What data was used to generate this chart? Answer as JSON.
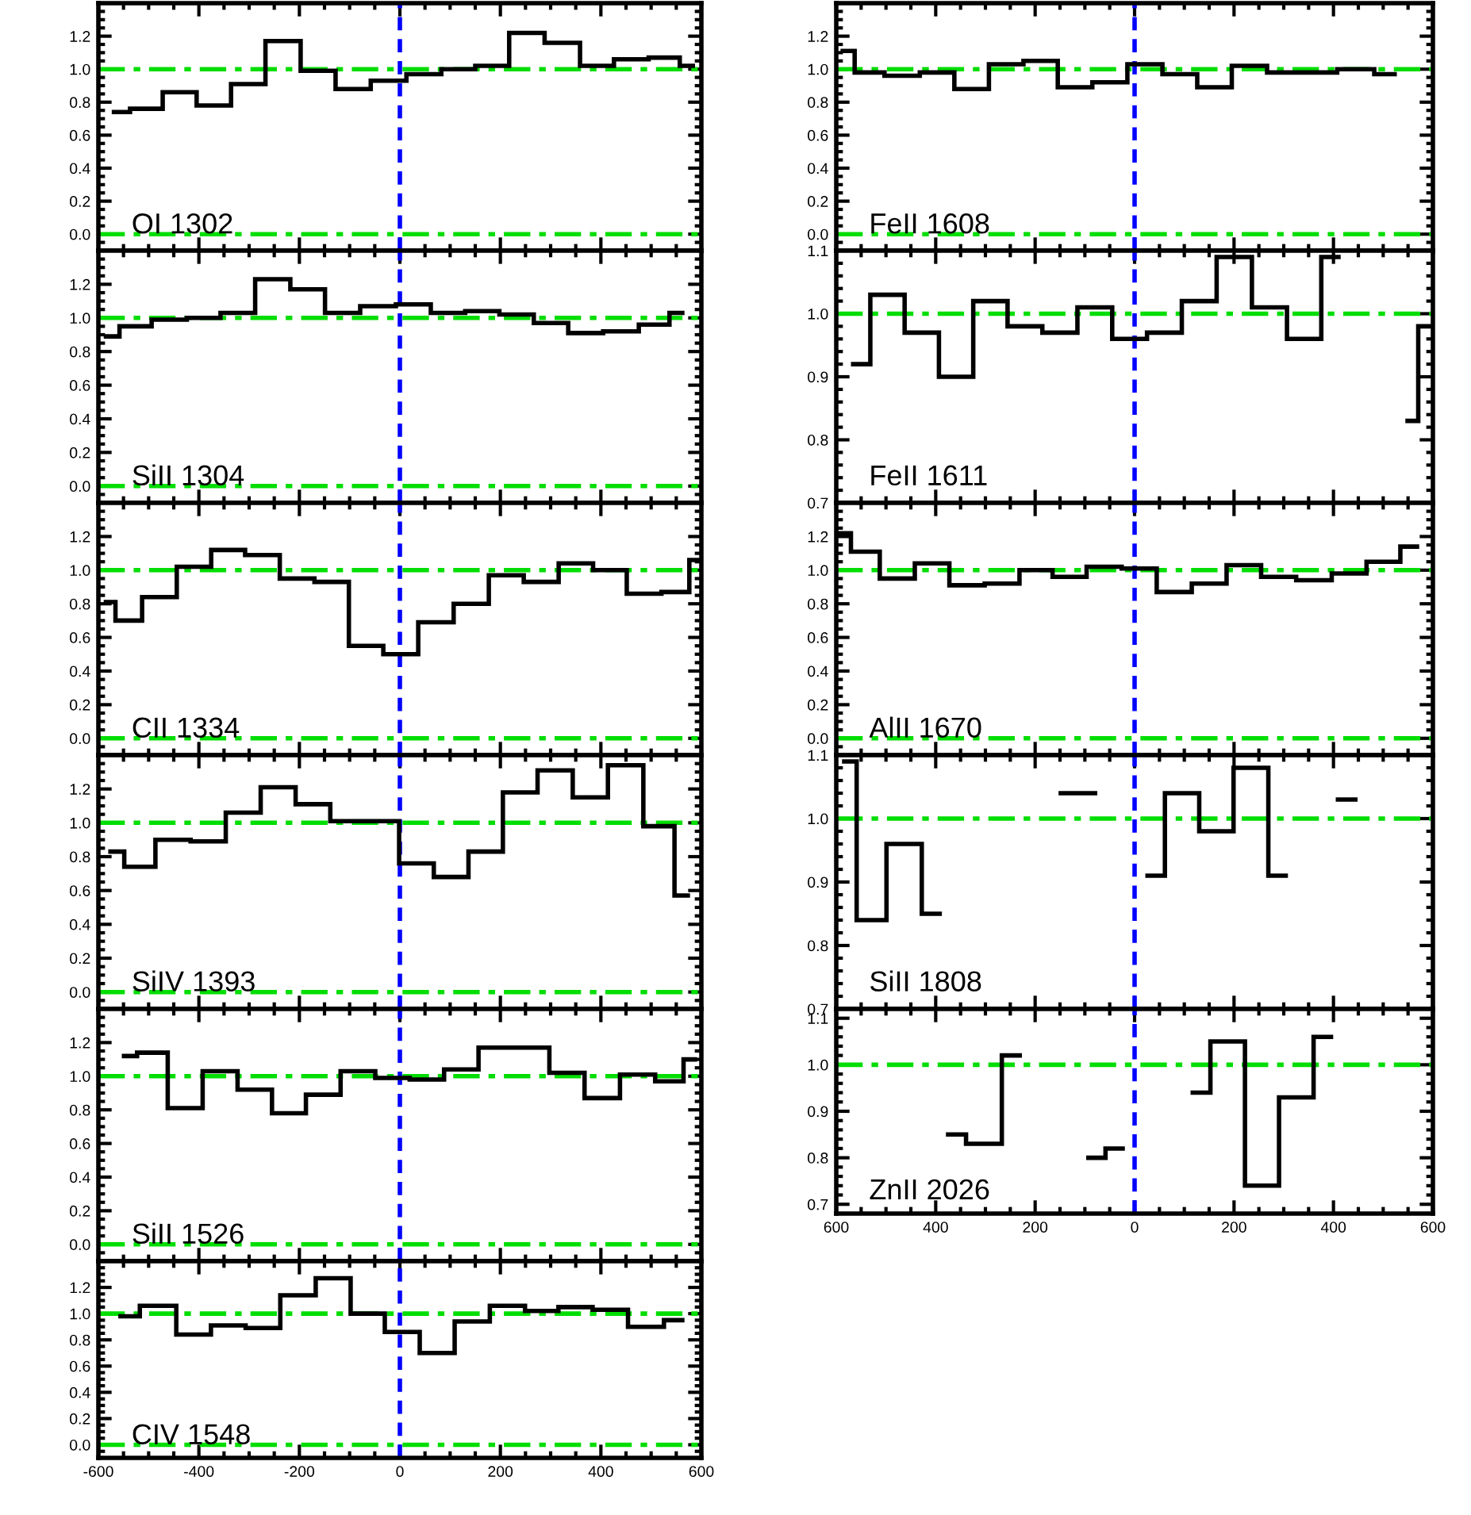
{
  "chart_data": [
    {
      "type": "step",
      "annotations": [
        "OI 1302"
      ],
      "series": [
        {
          "color": "#000000",
          "x": [
            -569,
            -505,
            -439,
            -370,
            -302,
            -233,
            -162,
            -94,
            -22,
            48,
            117,
            183,
            252,
            324,
            393,
            459,
            531,
            583
          ],
          "values": [
            0.74,
            0.76,
            0.86,
            0.78,
            0.91,
            1.17,
            0.99,
            0.88,
            0.93,
            0.97,
            1.0,
            1.02,
            1.22,
            1.16,
            1.02,
            1.06,
            1.07,
            1.02
          ]
        }
      ],
      "xlim": [
        -600,
        600
      ],
      "xticks": [
        {
          "value": -600,
          "label": null
        },
        {
          "value": -400,
          "label": null
        },
        {
          "value": -200,
          "label": null
        },
        {
          "value": 0,
          "label": null
        },
        {
          "value": 200,
          "label": null
        },
        {
          "value": 400,
          "label": null
        },
        {
          "value": 600,
          "label": null
        }
      ],
      "ylim": [
        -0.1,
        1.4
      ],
      "yticks": [
        {
          "value": 0,
          "label": "0.0"
        },
        {
          "value": 0.2,
          "label": "0.2"
        },
        {
          "value": 0.4,
          "label": "0.4"
        },
        {
          "value": 0.6,
          "label": "0.6"
        },
        {
          "value": 0.8,
          "label": "0.8"
        },
        {
          "value": 1,
          "label": "1.0"
        },
        {
          "value": 1.2,
          "label": "1.2"
        }
      ],
      "tick_labels": "y",
      "grid": false,
      "legend": false,
      "ref_lines": [
        {
          "axis": "y",
          "value": 0,
          "color": "#00dd00",
          "line_style": "dashdot"
        },
        {
          "axis": "y",
          "value": 1,
          "color": "#00dd00",
          "line_style": "dashdot"
        },
        {
          "axis": "x",
          "value": 0,
          "color": "#0000ff",
          "line_style": "dashed"
        }
      ]
    },
    {
      "type": "step",
      "annotations": [
        "SiII 1304"
      ],
      "series": [
        {
          "color": "#000000",
          "x": [
            -585,
            -531,
            -457,
            -391,
            -323,
            -253,
            -183,
            -115,
            -43,
            27,
            96,
            164,
            232,
            301,
            369,
            440,
            511,
            562
          ],
          "values": [
            0.89,
            0.95,
            0.99,
            1.0,
            1.03,
            1.23,
            1.17,
            1.03,
            1.07,
            1.08,
            1.03,
            1.04,
            1.02,
            0.97,
            0.91,
            0.92,
            0.96,
            1.03
          ]
        }
      ],
      "xlim": [
        -600,
        600
      ],
      "xticks": [
        {
          "value": -600,
          "label": null
        },
        {
          "value": -400,
          "label": null
        },
        {
          "value": -200,
          "label": null
        },
        {
          "value": 0,
          "label": null
        },
        {
          "value": 200,
          "label": null
        },
        {
          "value": 400,
          "label": null
        },
        {
          "value": 600,
          "label": null
        }
      ],
      "ylim": [
        -0.1,
        1.4
      ],
      "yticks": [
        {
          "value": 0,
          "label": "0.0"
        },
        {
          "value": 0.2,
          "label": "0.2"
        },
        {
          "value": 0.4,
          "label": "0.4"
        },
        {
          "value": 0.6,
          "label": "0.6"
        },
        {
          "value": 0.8,
          "label": "0.8"
        },
        {
          "value": 1,
          "label": "1.0"
        },
        {
          "value": 1.2,
          "label": "1.2"
        }
      ],
      "tick_labels": "y",
      "grid": false,
      "legend": false,
      "ref_lines": [
        {
          "axis": "y",
          "value": 0,
          "color": "#00dd00",
          "line_style": "dashdot"
        },
        {
          "axis": "y",
          "value": 1,
          "color": "#00dd00",
          "line_style": "dashdot"
        },
        {
          "axis": "x",
          "value": 0,
          "color": "#0000ff",
          "line_style": "dashed"
        }
      ]
    },
    {
      "type": "step",
      "annotations": [
        "CII 1334"
      ],
      "series": [
        {
          "color": "#000000",
          "x": [
            -585,
            -547,
            -479,
            -409,
            -342,
            -274,
            -204,
            -136,
            -67,
            1,
            72,
            142,
            212,
            281,
            351,
            418,
            485,
            556,
            596
          ],
          "values": [
            0.81,
            0.7,
            0.84,
            1.02,
            1.12,
            1.09,
            0.95,
            0.93,
            0.55,
            0.5,
            0.69,
            0.8,
            0.97,
            0.93,
            1.04,
            1.0,
            0.86,
            0.87,
            1.06
          ]
        }
      ],
      "xlim": [
        -600,
        600
      ],
      "xticks": [
        {
          "value": -600,
          "label": null
        },
        {
          "value": -400,
          "label": null
        },
        {
          "value": -200,
          "label": null
        },
        {
          "value": 0,
          "label": null
        },
        {
          "value": 200,
          "label": null
        },
        {
          "value": 400,
          "label": null
        },
        {
          "value": 600,
          "label": null
        }
      ],
      "ylim": [
        -0.1,
        1.4
      ],
      "yticks": [
        {
          "value": 0,
          "label": "0.0"
        },
        {
          "value": 0.2,
          "label": "0.2"
        },
        {
          "value": 0.4,
          "label": "0.4"
        },
        {
          "value": 0.6,
          "label": "0.6"
        },
        {
          "value": 0.8,
          "label": "0.8"
        },
        {
          "value": 1,
          "label": "1.0"
        },
        {
          "value": 1.2,
          "label": "1.2"
        }
      ],
      "tick_labels": "y",
      "grid": false,
      "legend": false,
      "ref_lines": [
        {
          "axis": "y",
          "value": 0,
          "color": "#00dd00",
          "line_style": "dashdot"
        },
        {
          "axis": "y",
          "value": 1,
          "color": "#00dd00",
          "line_style": "dashdot"
        },
        {
          "axis": "x",
          "value": 0,
          "color": "#0000ff",
          "line_style": "dashed"
        }
      ]
    },
    {
      "type": "step",
      "annotations": [
        "SiIV 1393"
      ],
      "series": [
        {
          "color": "#000000",
          "x": [
            -576,
            -521,
            -452,
            -381,
            -312,
            -242,
            -173,
            -104,
            -36,
            33,
            102,
            171,
            239,
            309,
            379,
            449,
            520,
            573
          ],
          "values": [
            0.83,
            0.74,
            0.9,
            0.89,
            1.06,
            1.21,
            1.11,
            1.01,
            1.01,
            0.76,
            0.68,
            0.83,
            1.18,
            1.31,
            1.15,
            1.34,
            0.98,
            0.57
          ]
        }
      ],
      "xlim": [
        -600,
        600
      ],
      "xticks": [
        {
          "value": -600,
          "label": null
        },
        {
          "value": -400,
          "label": null
        },
        {
          "value": -200,
          "label": null
        },
        {
          "value": 0,
          "label": null
        },
        {
          "value": 200,
          "label": null
        },
        {
          "value": 400,
          "label": null
        },
        {
          "value": 600,
          "label": null
        }
      ],
      "ylim": [
        -0.1,
        1.4
      ],
      "yticks": [
        {
          "value": 0,
          "label": "0.0"
        },
        {
          "value": 0.2,
          "label": "0.2"
        },
        {
          "value": 0.4,
          "label": "0.4"
        },
        {
          "value": 0.6,
          "label": "0.6"
        },
        {
          "value": 0.8,
          "label": "0.8"
        },
        {
          "value": 1,
          "label": "1.0"
        },
        {
          "value": 1.2,
          "label": "1.2"
        }
      ],
      "tick_labels": "y",
      "grid": false,
      "legend": false,
      "ref_lines": [
        {
          "axis": "y",
          "value": 0,
          "color": "#00dd00",
          "line_style": "dashdot"
        },
        {
          "axis": "y",
          "value": 1,
          "color": "#00dd00",
          "line_style": "dashdot"
        },
        {
          "axis": "x",
          "value": 0,
          "color": "#0000ff",
          "line_style": "dashed"
        }
      ]
    },
    {
      "type": "step",
      "annotations": [
        "SiII 1526"
      ],
      "series": [
        {
          "color": "#000000",
          "x": [
            -549,
            -497,
            -427,
            -358,
            -288,
            -221,
            -153,
            -83,
            -15,
            54,
            122,
            191,
            262,
            333,
            402,
            474,
            542,
            587
          ],
          "values": [
            1.12,
            1.14,
            0.81,
            1.03,
            0.92,
            0.78,
            0.89,
            1.03,
            0.99,
            0.98,
            1.04,
            1.17,
            1.17,
            1.02,
            0.87,
            1.01,
            0.97,
            1.1
          ]
        }
      ],
      "xlim": [
        -600,
        600
      ],
      "xticks": [
        {
          "value": -600,
          "label": null
        },
        {
          "value": -400,
          "label": null
        },
        {
          "value": -200,
          "label": null
        },
        {
          "value": 0,
          "label": null
        },
        {
          "value": 200,
          "label": null
        },
        {
          "value": 400,
          "label": null
        },
        {
          "value": 600,
          "label": null
        }
      ],
      "ylim": [
        -0.1,
        1.4
      ],
      "yticks": [
        {
          "value": 0,
          "label": "0.0"
        },
        {
          "value": 0.2,
          "label": "0.2"
        },
        {
          "value": 0.4,
          "label": "0.4"
        },
        {
          "value": 0.6,
          "label": "0.6"
        },
        {
          "value": 0.8,
          "label": "0.8"
        },
        {
          "value": 1,
          "label": "1.0"
        },
        {
          "value": 1.2,
          "label": "1.2"
        }
      ],
      "tick_labels": "y",
      "grid": false,
      "legend": false,
      "ref_lines": [
        {
          "axis": "y",
          "value": 0,
          "color": "#00dd00",
          "line_style": "dashdot"
        },
        {
          "axis": "y",
          "value": 1,
          "color": "#00dd00",
          "line_style": "dashdot"
        },
        {
          "axis": "x",
          "value": 0,
          "color": "#0000ff",
          "line_style": "dashed"
        }
      ]
    },
    {
      "type": "step",
      "annotations": [
        "CIV 1548"
      ],
      "series": [
        {
          "color": "#000000",
          "x": [
            -556,
            -479,
            -411,
            -341,
            -273,
            -203,
            -132,
            -64,
            4,
            75,
            143,
            215,
            283,
            348,
            419,
            489,
            562
          ],
          "values": [
            0.98,
            1.06,
            0.84,
            0.91,
            0.89,
            1.14,
            1.27,
            1.0,
            0.86,
            0.7,
            0.94,
            1.06,
            1.02,
            1.05,
            1.03,
            0.9,
            0.95
          ]
        }
      ],
      "xlim": [
        -600,
        600
      ],
      "xticks": [
        -600,
        -400,
        -200,
        0,
        200,
        400,
        600
      ],
      "ylim": [
        -0.1,
        1.4
      ],
      "yticks": [
        {
          "value": 0,
          "label": "0.0"
        },
        {
          "value": 0.2,
          "label": "0.2"
        },
        {
          "value": 0.4,
          "label": "0.4"
        },
        {
          "value": 0.6,
          "label": "0.6"
        },
        {
          "value": 0.8,
          "label": "0.8"
        },
        {
          "value": 1,
          "label": "1.0"
        },
        {
          "value": 1.2,
          "label": "1.2"
        }
      ],
      "grid": false,
      "legend": false,
      "ref_lines": [
        {
          "axis": "y",
          "value": 0,
          "color": "#00dd00",
          "line_style": "dashdot"
        },
        {
          "axis": "y",
          "value": 1,
          "color": "#00dd00",
          "line_style": "dashdot"
        },
        {
          "axis": "x",
          "value": 0,
          "color": "#0000ff",
          "line_style": "dashed"
        }
      ]
    },
    {
      "type": "step",
      "annotations": [
        "FeII 1608"
      ],
      "series": [
        {
          "color": "#000000",
          "x": [
            -587,
            -539,
            -467,
            -397,
            -328,
            -258,
            -189,
            -120,
            -50,
            21,
            91,
            161,
            230,
            303,
            374,
            441,
            523
          ],
          "values": [
            1.11,
            0.98,
            0.96,
            0.98,
            0.88,
            1.03,
            1.05,
            0.89,
            0.92,
            1.03,
            0.97,
            0.89,
            1.02,
            0.98,
            0.98,
            1.0,
            0.97
          ]
        }
      ],
      "xlim": [
        -600,
        600
      ],
      "xticks": [
        {
          "value": -600,
          "label": null
        },
        {
          "value": -400,
          "label": null
        },
        {
          "value": -200,
          "label": null
        },
        {
          "value": 0,
          "label": null
        },
        {
          "value": 200,
          "label": null
        },
        {
          "value": 400,
          "label": null
        },
        {
          "value": 600,
          "label": null
        }
      ],
      "ylim": [
        -0.1,
        1.4
      ],
      "yticks": [
        {
          "value": 0,
          "label": "0.0"
        },
        {
          "value": 0.2,
          "label": "0.2"
        },
        {
          "value": 0.4,
          "label": "0.4"
        },
        {
          "value": 0.6,
          "label": "0.6"
        },
        {
          "value": 0.8,
          "label": "0.8"
        },
        {
          "value": 1,
          "label": "1.0"
        },
        {
          "value": 1.2,
          "label": "1.2"
        }
      ],
      "tick_labels": "y",
      "grid": false,
      "legend": false,
      "ref_lines": [
        {
          "axis": "y",
          "value": 0,
          "color": "#00dd00",
          "line_style": "dashdot"
        },
        {
          "axis": "y",
          "value": 1,
          "color": "#00dd00",
          "line_style": "dashdot"
        },
        {
          "axis": "x",
          "value": 0,
          "color": "#0000ff",
          "line_style": "dashed"
        }
      ]
    },
    {
      "type": "step",
      "annotations": [
        "FeII 1611"
      ],
      "series": [
        {
          "color": "#000000",
          "x": [
            -566,
            -497,
            -428,
            -359,
            -290,
            -221,
            -150,
            -80,
            -10,
            60,
            130,
            200,
            272,
            341,
            410,
            480,
            549,
            592
          ],
          "values": [
            0.92,
            1.03,
            0.97,
            0.9,
            1.02,
            0.98,
            0.97,
            1.01,
            0.96,
            0.97,
            1.02,
            1.09,
            1.01,
            0.96,
            1.09,
            null,
            0.83,
            0.98
          ]
        }
      ],
      "xlim": [
        -600,
        600
      ],
      "xticks": [
        {
          "value": -600,
          "label": null
        },
        {
          "value": -400,
          "label": null
        },
        {
          "value": -200,
          "label": null
        },
        {
          "value": 0,
          "label": null
        },
        {
          "value": 200,
          "label": null
        },
        {
          "value": 400,
          "label": null
        },
        {
          "value": 600,
          "label": null
        }
      ],
      "ylim": [
        0.7,
        1.1
      ],
      "yticks": [
        {
          "value": 0.7,
          "label": "0.7"
        },
        {
          "value": 0.8,
          "label": "0.8"
        },
        {
          "value": 0.9,
          "label": "0.9"
        },
        {
          "value": 1.0,
          "label": "1.0"
        },
        {
          "value": 1.1,
          "label": "1.1"
        }
      ],
      "tick_labels": "y",
      "grid": false,
      "legend": false,
      "ref_lines": [
        {
          "axis": "y",
          "value": 1,
          "color": "#00dd00",
          "line_style": "dashdot"
        },
        {
          "axis": "x",
          "value": 0,
          "color": "#0000ff",
          "line_style": "dashed"
        }
      ]
    },
    {
      "type": "step",
      "annotations": [
        "AlII 1670"
      ],
      "series": [
        {
          "color": "#000000",
          "x": [
            -593,
            -548,
            -477,
            -407,
            -338,
            -265,
            -198,
            -132,
            -61,
            9,
            80,
            150,
            220,
            289,
            361,
            432,
            501,
            568
          ],
          "values": [
            1.22,
            1.11,
            0.95,
            1.04,
            0.91,
            0.92,
            1.0,
            0.96,
            1.02,
            1.01,
            0.87,
            0.92,
            1.03,
            0.96,
            0.94,
            0.98,
            1.05,
            1.14
          ]
        }
      ],
      "xlim": [
        -600,
        600
      ],
      "xticks": [
        {
          "value": -600,
          "label": null
        },
        {
          "value": -400,
          "label": null
        },
        {
          "value": -200,
          "label": null
        },
        {
          "value": 0,
          "label": null
        },
        {
          "value": 200,
          "label": null
        },
        {
          "value": 400,
          "label": null
        },
        {
          "value": 600,
          "label": null
        }
      ],
      "ylim": [
        -0.1,
        1.4
      ],
      "yticks": [
        {
          "value": 0,
          "label": "0.0"
        },
        {
          "value": 0.2,
          "label": "0.2"
        },
        {
          "value": 0.4,
          "label": "0.4"
        },
        {
          "value": 0.6,
          "label": "0.6"
        },
        {
          "value": 0.8,
          "label": "0.8"
        },
        {
          "value": 1,
          "label": "1.0"
        },
        {
          "value": 1.2,
          "label": "1.2"
        }
      ],
      "tick_labels": "y",
      "grid": false,
      "legend": false,
      "ref_lines": [
        {
          "axis": "y",
          "value": 0,
          "color": "#00dd00",
          "line_style": "dashdot"
        },
        {
          "axis": "y",
          "value": 1,
          "color": "#00dd00",
          "line_style": "dashdot"
        },
        {
          "axis": "x",
          "value": 0,
          "color": "#0000ff",
          "line_style": "dashed"
        }
      ]
    },
    {
      "type": "step",
      "annotations": [
        "SiII 1808"
      ],
      "series": [
        {
          "color": "#000000",
          "x": [
            -584,
            -534,
            -464,
            -392,
            -322,
            -252,
            -183,
            -114,
            -45,
            26,
            96,
            164,
            234,
            304,
            374,
            444
          ],
          "values": [
            1.09,
            0.84,
            0.96,
            0.85,
            null,
            null,
            null,
            1.04,
            null,
            0.91,
            1.04,
            0.98,
            1.08,
            0.91,
            null,
            1.03
          ]
        }
      ],
      "xlim": [
        -600,
        600
      ],
      "xticks": [
        {
          "value": -600,
          "label": null
        },
        {
          "value": -400,
          "label": null
        },
        {
          "value": -200,
          "label": null
        },
        {
          "value": 0,
          "label": null
        },
        {
          "value": 200,
          "label": null
        },
        {
          "value": 400,
          "label": null
        },
        {
          "value": 600,
          "label": null
        }
      ],
      "ylim": [
        0.7,
        1.1
      ],
      "yticks": [
        {
          "value": 0.7,
          "label": "0.7"
        },
        {
          "value": 0.8,
          "label": "0.8"
        },
        {
          "value": 0.9,
          "label": "0.9"
        },
        {
          "value": 1.0,
          "label": "1.0"
        },
        {
          "value": 1.1,
          "label": "1.1"
        }
      ],
      "tick_labels": "y",
      "grid": false,
      "legend": false,
      "ref_lines": [
        {
          "axis": "y",
          "value": 1,
          "color": "#00dd00",
          "line_style": "dashdot"
        },
        {
          "axis": "x",
          "value": 0,
          "color": "#0000ff",
          "line_style": "dashed"
        }
      ]
    },
    {
      "type": "step",
      "annotations": [
        "ZnII 2026"
      ],
      "series": [
        {
          "color": "#000000",
          "x": [
            -375,
            -303,
            -231,
            -162,
            -93,
            -24,
            45,
            117,
            188,
            256,
            325,
            395
          ],
          "values": [
            0.85,
            0.83,
            1.02,
            null,
            0.8,
            0.82,
            null,
            0.94,
            1.05,
            0.74,
            0.93,
            1.06
          ]
        }
      ],
      "xlim": [
        -600,
        600
      ],
      "xticks": [
        {
          "value": -600,
          "label": "600"
        },
        {
          "value": -400,
          "label": "400"
        },
        {
          "value": -200,
          "label": "200"
        },
        0,
        200,
        400,
        600
      ],
      "ylim": [
        0.68,
        1.12
      ],
      "yticks": [
        {
          "value": 0.7,
          "label": "0.7"
        },
        {
          "value": 0.8,
          "label": "0.8"
        },
        {
          "value": 0.9,
          "label": "0.9"
        },
        {
          "value": 1.0,
          "label": "1.0"
        },
        {
          "value": 1.1,
          "label": "1.1"
        }
      ],
      "grid": false,
      "legend": false,
      "ref_lines": [
        {
          "axis": "y",
          "value": 1,
          "color": "#00dd00",
          "line_style": "dashdot"
        },
        {
          "axis": "x",
          "value": 0,
          "color": "#0000ff",
          "line_style": "dashed"
        }
      ]
    }
  ]
}
